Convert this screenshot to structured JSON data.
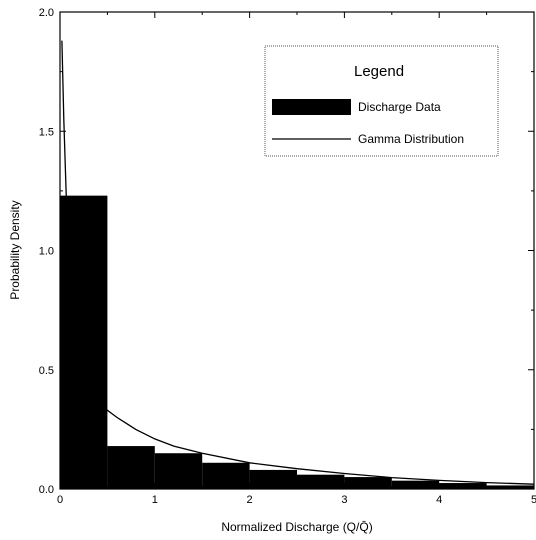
{
  "chart_data": {
    "type": "bar",
    "title": "",
    "xlabel": "Normalized Discharge (Q/Q̄)",
    "ylabel": "Probability Density",
    "xlim": [
      0,
      5
    ],
    "ylim": [
      0,
      2.0
    ],
    "x_ticks": [
      "0",
      "1",
      "2",
      "3",
      "4",
      "5"
    ],
    "y_ticks": [
      "0.0",
      "0.5",
      "1.0",
      "1.5",
      "2.0"
    ],
    "grid": false,
    "legend_position": "top-right",
    "legend": {
      "title": "Legend",
      "entries": [
        "Discharge Data",
        "Gamma Distribution"
      ]
    },
    "colors": {
      "bars": "#000000",
      "line": "#000000",
      "background": "#ffffff"
    },
    "series": [
      {
        "name": "Discharge Data",
        "type": "bar",
        "bins": [
          {
            "x0": 0.0,
            "x1": 0.5,
            "value": 1.23
          },
          {
            "x0": 0.5,
            "x1": 1.0,
            "value": 0.18
          },
          {
            "x0": 1.0,
            "x1": 1.5,
            "value": 0.15
          },
          {
            "x0": 1.5,
            "x1": 2.0,
            "value": 0.11
          },
          {
            "x0": 2.0,
            "x1": 2.5,
            "value": 0.08
          },
          {
            "x0": 2.5,
            "x1": 3.0,
            "value": 0.06
          },
          {
            "x0": 3.0,
            "x1": 3.5,
            "value": 0.05
          },
          {
            "x0": 3.5,
            "x1": 4.0,
            "value": 0.035
          },
          {
            "x0": 4.0,
            "x1": 4.5,
            "value": 0.025
          },
          {
            "x0": 4.5,
            "x1": 5.0,
            "value": 0.015
          }
        ]
      },
      {
        "name": "Gamma Distribution",
        "type": "line",
        "x": [
          0.02,
          0.04,
          0.06,
          0.08,
          0.1,
          0.15,
          0.2,
          0.3,
          0.4,
          0.5,
          0.6,
          0.8,
          1.0,
          1.2,
          1.5,
          2.0,
          2.5,
          3.0,
          3.5,
          4.0,
          4.5,
          5.0
        ],
        "y": [
          1.88,
          1.55,
          1.3,
          1.05,
          0.85,
          0.68,
          0.58,
          0.45,
          0.38,
          0.33,
          0.3,
          0.25,
          0.21,
          0.18,
          0.15,
          0.11,
          0.085,
          0.065,
          0.048,
          0.036,
          0.027,
          0.02
        ]
      }
    ]
  }
}
